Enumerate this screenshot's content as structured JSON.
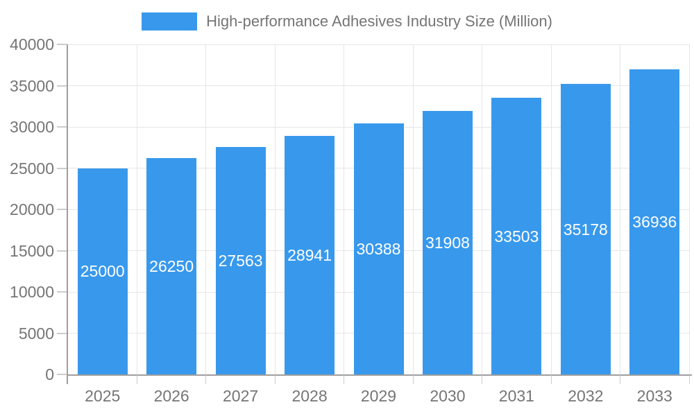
{
  "chart_data": {
    "type": "bar",
    "title": "High-performance Adhesives Industry Size (Million)",
    "categories": [
      "2025",
      "2026",
      "2027",
      "2028",
      "2029",
      "2030",
      "2031",
      "2032",
      "2033"
    ],
    "values": [
      25000,
      26250,
      27563,
      28941,
      30388,
      31908,
      33503,
      35178,
      36936
    ],
    "xlabel": "",
    "ylabel": "",
    "ylim": [
      0,
      40000
    ],
    "ytick_step": 5000,
    "ytick_labels": [
      "0",
      "5000",
      "10000",
      "15000",
      "20000",
      "25000",
      "30000",
      "35000",
      "40000"
    ],
    "grid": "both",
    "legend_position": "top",
    "value_labels": "inside-center",
    "colors": {
      "bar": "#3899ec",
      "bar_value_text": "#ffffff",
      "axis_text": "#757575",
      "axis_line": "#9e9e9e",
      "tick": "#cccccc",
      "gridline": "#e6e6e6",
      "background": "#ffffff"
    }
  }
}
